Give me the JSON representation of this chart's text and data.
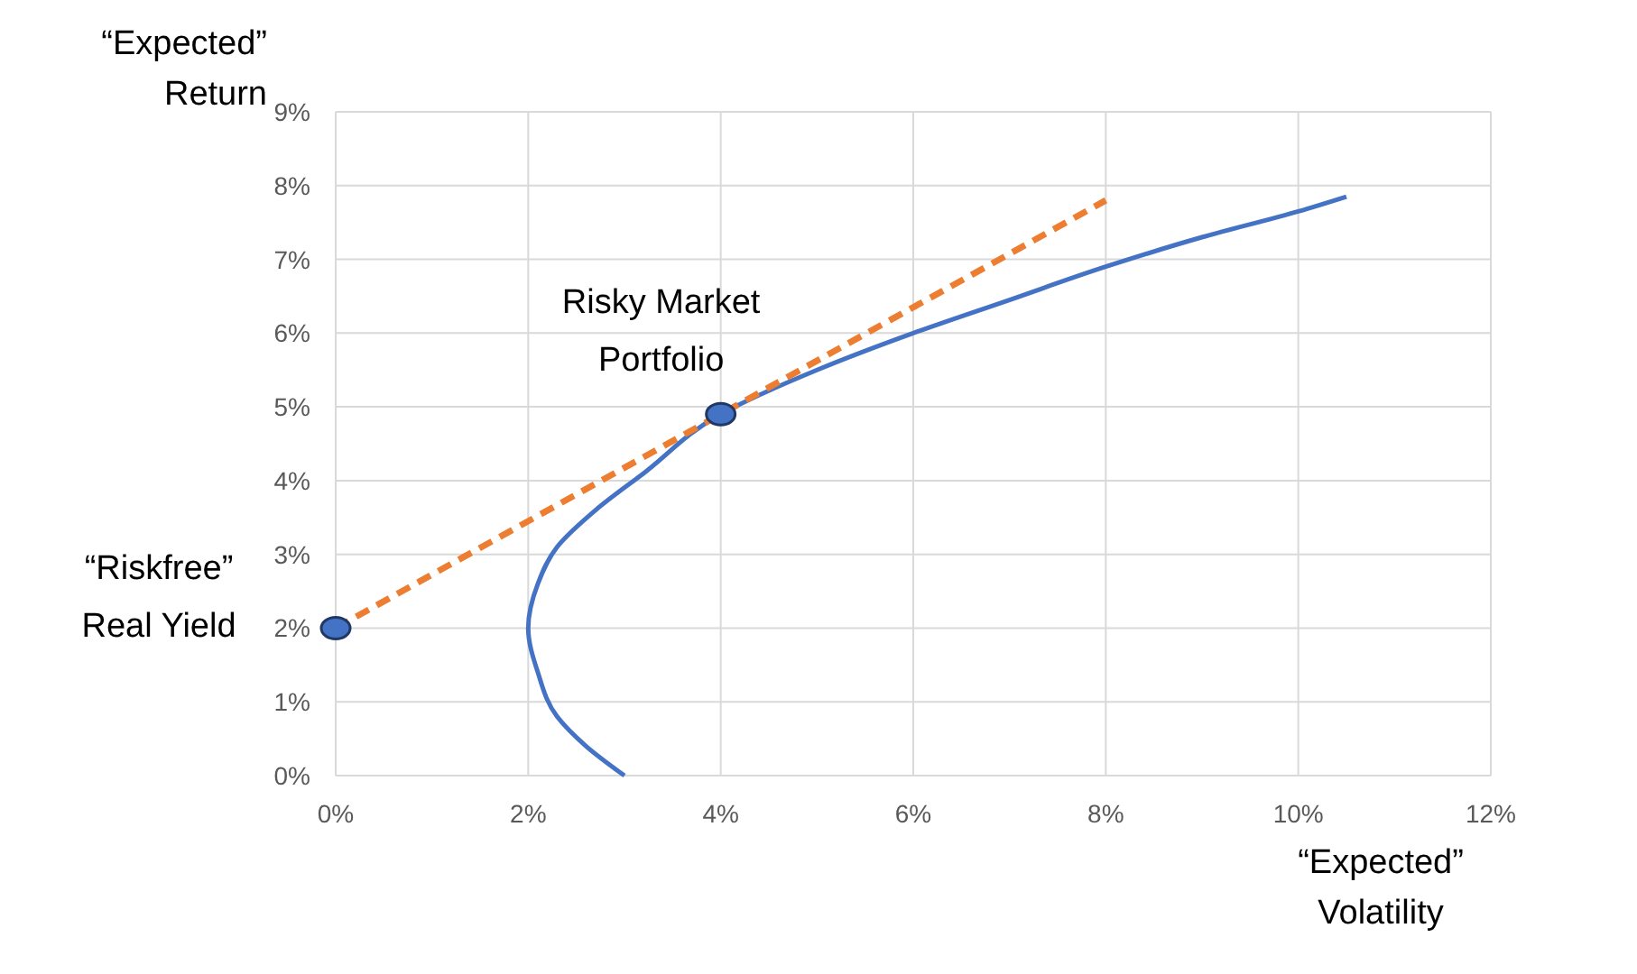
{
  "chart_data": {
    "type": "line",
    "xlabel": "“Expected”\nVolatility",
    "ylabel": "“Expected”\nReturn",
    "xlim": [
      0,
      12
    ],
    "ylim": [
      0,
      9
    ],
    "xticks": [
      {
        "value": 0,
        "label": "0%"
      },
      {
        "value": 2,
        "label": "2%"
      },
      {
        "value": 4,
        "label": "4%"
      },
      {
        "value": 6,
        "label": "6%"
      },
      {
        "value": 8,
        "label": "8%"
      },
      {
        "value": 10,
        "label": "10%"
      },
      {
        "value": 12,
        "label": "12%"
      }
    ],
    "yticks": [
      {
        "value": 0,
        "label": "0%"
      },
      {
        "value": 1,
        "label": "1%"
      },
      {
        "value": 2,
        "label": "2%"
      },
      {
        "value": 3,
        "label": "3%"
      },
      {
        "value": 4,
        "label": "4%"
      },
      {
        "value": 5,
        "label": "5%"
      },
      {
        "value": 6,
        "label": "6%"
      },
      {
        "value": 7,
        "label": "7%"
      },
      {
        "value": 8,
        "label": "8%"
      },
      {
        "value": 9,
        "label": "9%"
      }
    ],
    "grid": true,
    "series": [
      {
        "color": "#4472c4",
        "line_style": "solid",
        "marker": "none",
        "x": [
          3,
          2.6,
          2.3,
          2.1,
          2.0,
          2.1,
          2.3,
          2.7,
          3.2,
          4,
          5,
          6,
          7,
          8,
          9,
          10,
          10.5
        ],
        "values": [
          0,
          0.4,
          0.8,
          1.4,
          2.0,
          2.6,
          3.1,
          3.6,
          4.1,
          4.9,
          5.5,
          6.0,
          6.45,
          6.9,
          7.3,
          7.65,
          7.85
        ]
      },
      {
        "color": "#ed7d31",
        "line_style": "dashed",
        "marker": "none",
        "x": [
          0,
          8
        ],
        "values": [
          2,
          7.8
        ]
      },
      {
        "type": "scatter",
        "color": "#4472c4",
        "marker": "circle",
        "x": [
          0,
          4
        ],
        "values": [
          2,
          4.9
        ]
      }
    ],
    "annotations": [
      {
        "text": "Risky Market\nPortfolio",
        "x": 4,
        "y": 4.9
      },
      {
        "text": "“Riskfree”\nReal Yield",
        "x": 0,
        "y": 2
      }
    ]
  }
}
